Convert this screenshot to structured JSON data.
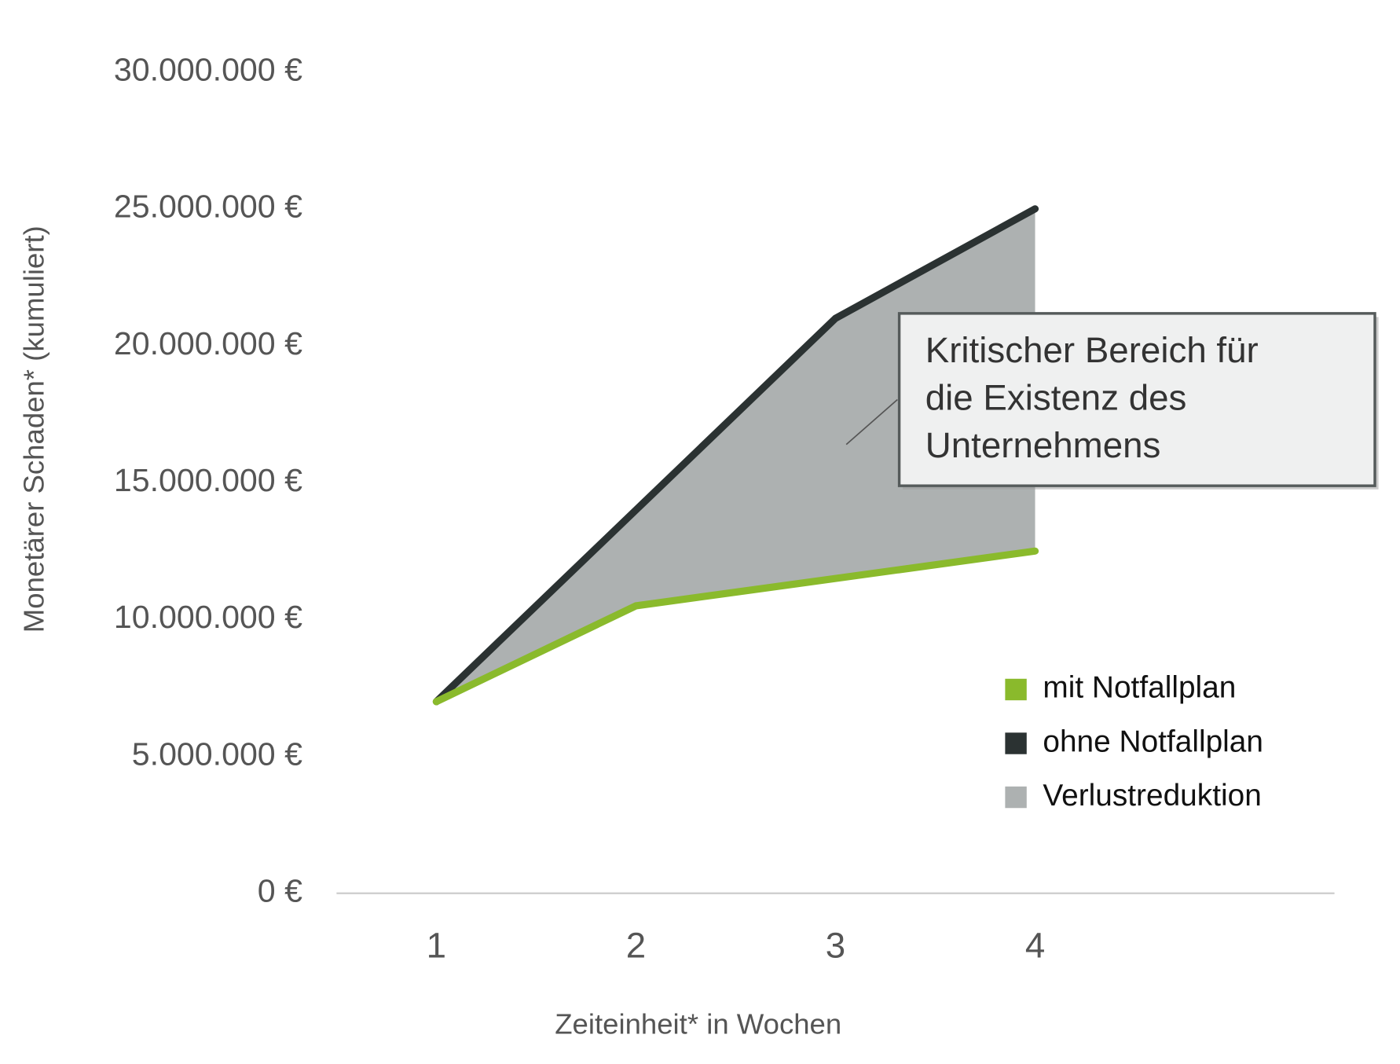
{
  "chart_data": {
    "type": "line",
    "y_label": "Monetärer Schaden* (kumuliert)",
    "x_label": "Zeiteinheit* in Wochen",
    "x": [
      1,
      2,
      3,
      4
    ],
    "xlim": [
      0.5,
      5.5
    ],
    "xticks": [
      1,
      2,
      3,
      4
    ],
    "ylim": [
      0,
      30000000
    ],
    "yticks": [
      {
        "value": 0,
        "label": "0 €"
      },
      {
        "value": 5000000,
        "label": "5.000.000 €"
      },
      {
        "value": 10000000,
        "label": "10.000.000 €"
      },
      {
        "value": 15000000,
        "label": "15.000.000 €"
      },
      {
        "value": 20000000,
        "label": "20.000.000 €"
      },
      {
        "value": 25000000,
        "label": "25.000.000 €"
      },
      {
        "value": 30000000,
        "label": "30.000.000 €"
      }
    ],
    "series": [
      {
        "name": "mit Notfallplan",
        "color": "#8aba2c",
        "values": [
          7000000,
          10500000,
          11500000,
          12500000
        ]
      },
      {
        "name": "ohne Notfallplan",
        "color": "#2b3232",
        "values": [
          7000000,
          14000000,
          21000000,
          25000000
        ]
      }
    ],
    "band": {
      "name": "Verlustreduktion",
      "color": "#adb1b1"
    },
    "annotation": {
      "lines": [
        "Kritischer Bereich für",
        "die Existenz des",
        "Unternehmens"
      ]
    }
  }
}
